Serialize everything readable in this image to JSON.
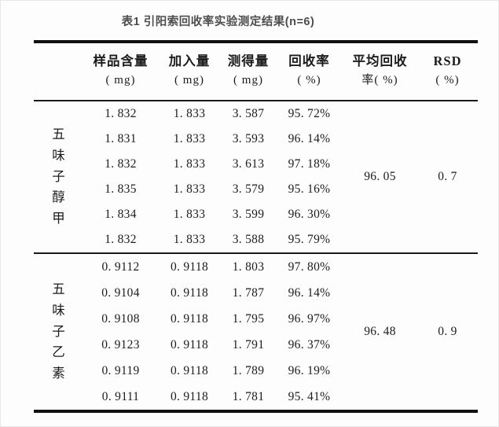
{
  "page": {
    "title": "表1 引阳索回收率实验测定结果(n=6)"
  },
  "table": {
    "headers": [
      {
        "line1": "样品含量",
        "line2": "( mg)"
      },
      {
        "line1": "加入量",
        "line2": "( mg)"
      },
      {
        "line1": "测得量",
        "line2": "( mg)"
      },
      {
        "line1": "回收率",
        "line2": "( %)"
      },
      {
        "line1": "平均回收",
        "line2": "率( %)"
      },
      {
        "line1": "RSD",
        "line2": "( %)"
      }
    ],
    "groups": [
      {
        "label": "五味子醇甲",
        "avg": "96. 05",
        "rsd": "0. 7",
        "rows": [
          [
            "1. 832",
            "1. 833",
            "3. 587",
            "95. 72%"
          ],
          [
            "1. 831",
            "1. 833",
            "3. 593",
            "96. 14%"
          ],
          [
            "1. 832",
            "1. 833",
            "3. 613",
            "97. 18%"
          ],
          [
            "1. 835",
            "1. 833",
            "3. 579",
            "95. 16%"
          ],
          [
            "1. 834",
            "1. 833",
            "3. 599",
            "96. 30%"
          ],
          [
            "1. 832",
            "1. 833",
            "3. 588",
            "95. 79%"
          ]
        ]
      },
      {
        "label": "五味子乙素",
        "avg": "96. 48",
        "rsd": "0. 9",
        "rows": [
          [
            "0. 9112",
            "0. 9118",
            "1. 803",
            "97. 80%"
          ],
          [
            "0. 9104",
            "0. 9118",
            "1. 787",
            "96. 14%"
          ],
          [
            "0. 9108",
            "0. 9118",
            "1. 795",
            "96. 97%"
          ],
          [
            "0. 9123",
            "0. 9118",
            "1. 791",
            "96. 37%"
          ],
          [
            "0. 9119",
            "0. 9118",
            "1. 789",
            "96. 19%"
          ],
          [
            "0. 9111",
            "0. 9118",
            "1. 781",
            "95. 41%"
          ]
        ]
      }
    ]
  }
}
